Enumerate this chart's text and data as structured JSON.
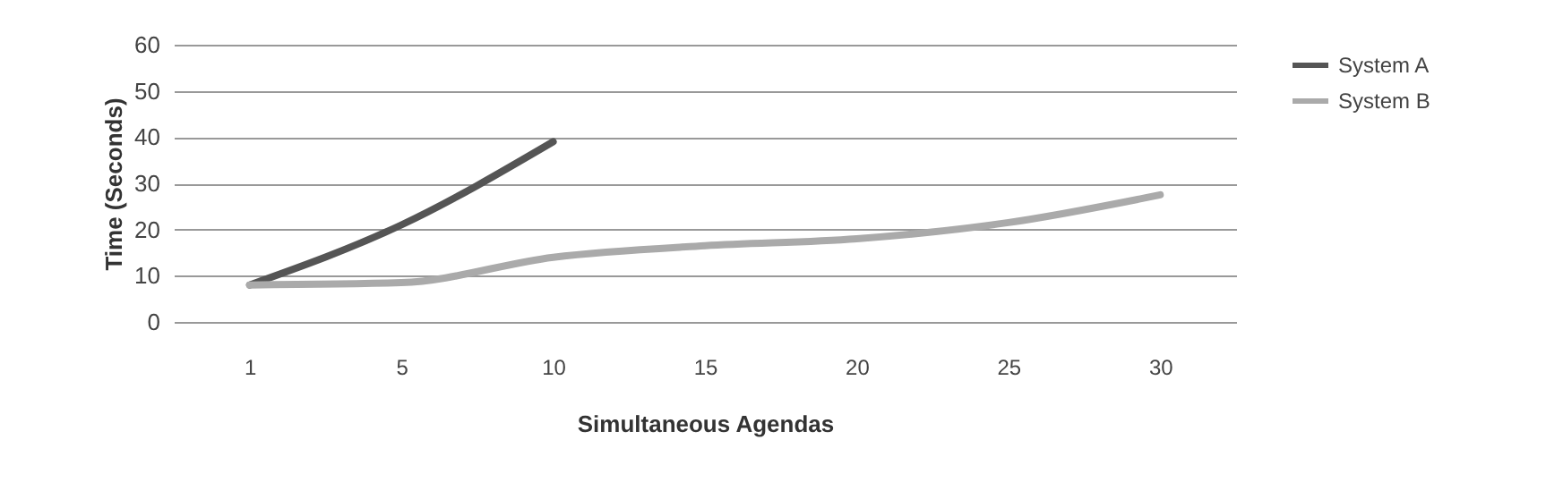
{
  "chart_data": {
    "type": "line",
    "xlabel": "Simultaneous Agendas",
    "ylabel": "Time (Seconds)",
    "categories": [
      "1",
      "5",
      "10",
      "15",
      "20",
      "25",
      "30"
    ],
    "series": [
      {
        "name": "System A",
        "color": "#555555",
        "values": [
          8,
          21,
          39,
          null,
          null,
          null,
          null
        ]
      },
      {
        "name": "System B",
        "color": "#aaaaaa",
        "values": [
          8,
          8.5,
          14,
          16.5,
          18,
          21.5,
          27.5
        ]
      }
    ],
    "ylim": [
      0,
      60
    ],
    "yticks": [
      0,
      10,
      20,
      30,
      40,
      50,
      60
    ],
    "grid": "y",
    "legend": "right",
    "marker": "none",
    "line_style": "solid"
  }
}
